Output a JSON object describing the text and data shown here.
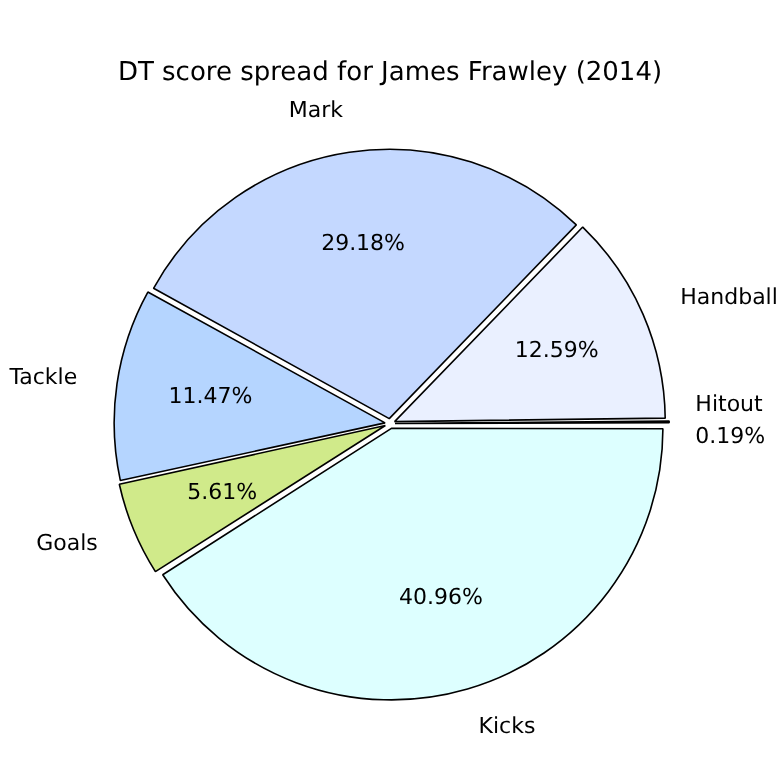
{
  "chart_data": {
    "type": "pie",
    "title": "DT score spread for James Frawley (2014)",
    "categories": [
      "Kicks",
      "Goals",
      "Tackle",
      "Mark",
      "Handball",
      "Hitout"
    ],
    "values": [
      40.96,
      5.61,
      11.47,
      29.18,
      12.59,
      0.19
    ],
    "colors": [
      "#ddffff",
      "#d0ea8a",
      "#b5d5ff",
      "#c4d8ff",
      "#eaf0ff",
      "#f0f0ff"
    ],
    "value_labels": [
      "40.96%",
      "5.61%",
      "11.47%",
      "29.18%",
      "12.59%",
      "0.19%"
    ],
    "legend": false
  }
}
